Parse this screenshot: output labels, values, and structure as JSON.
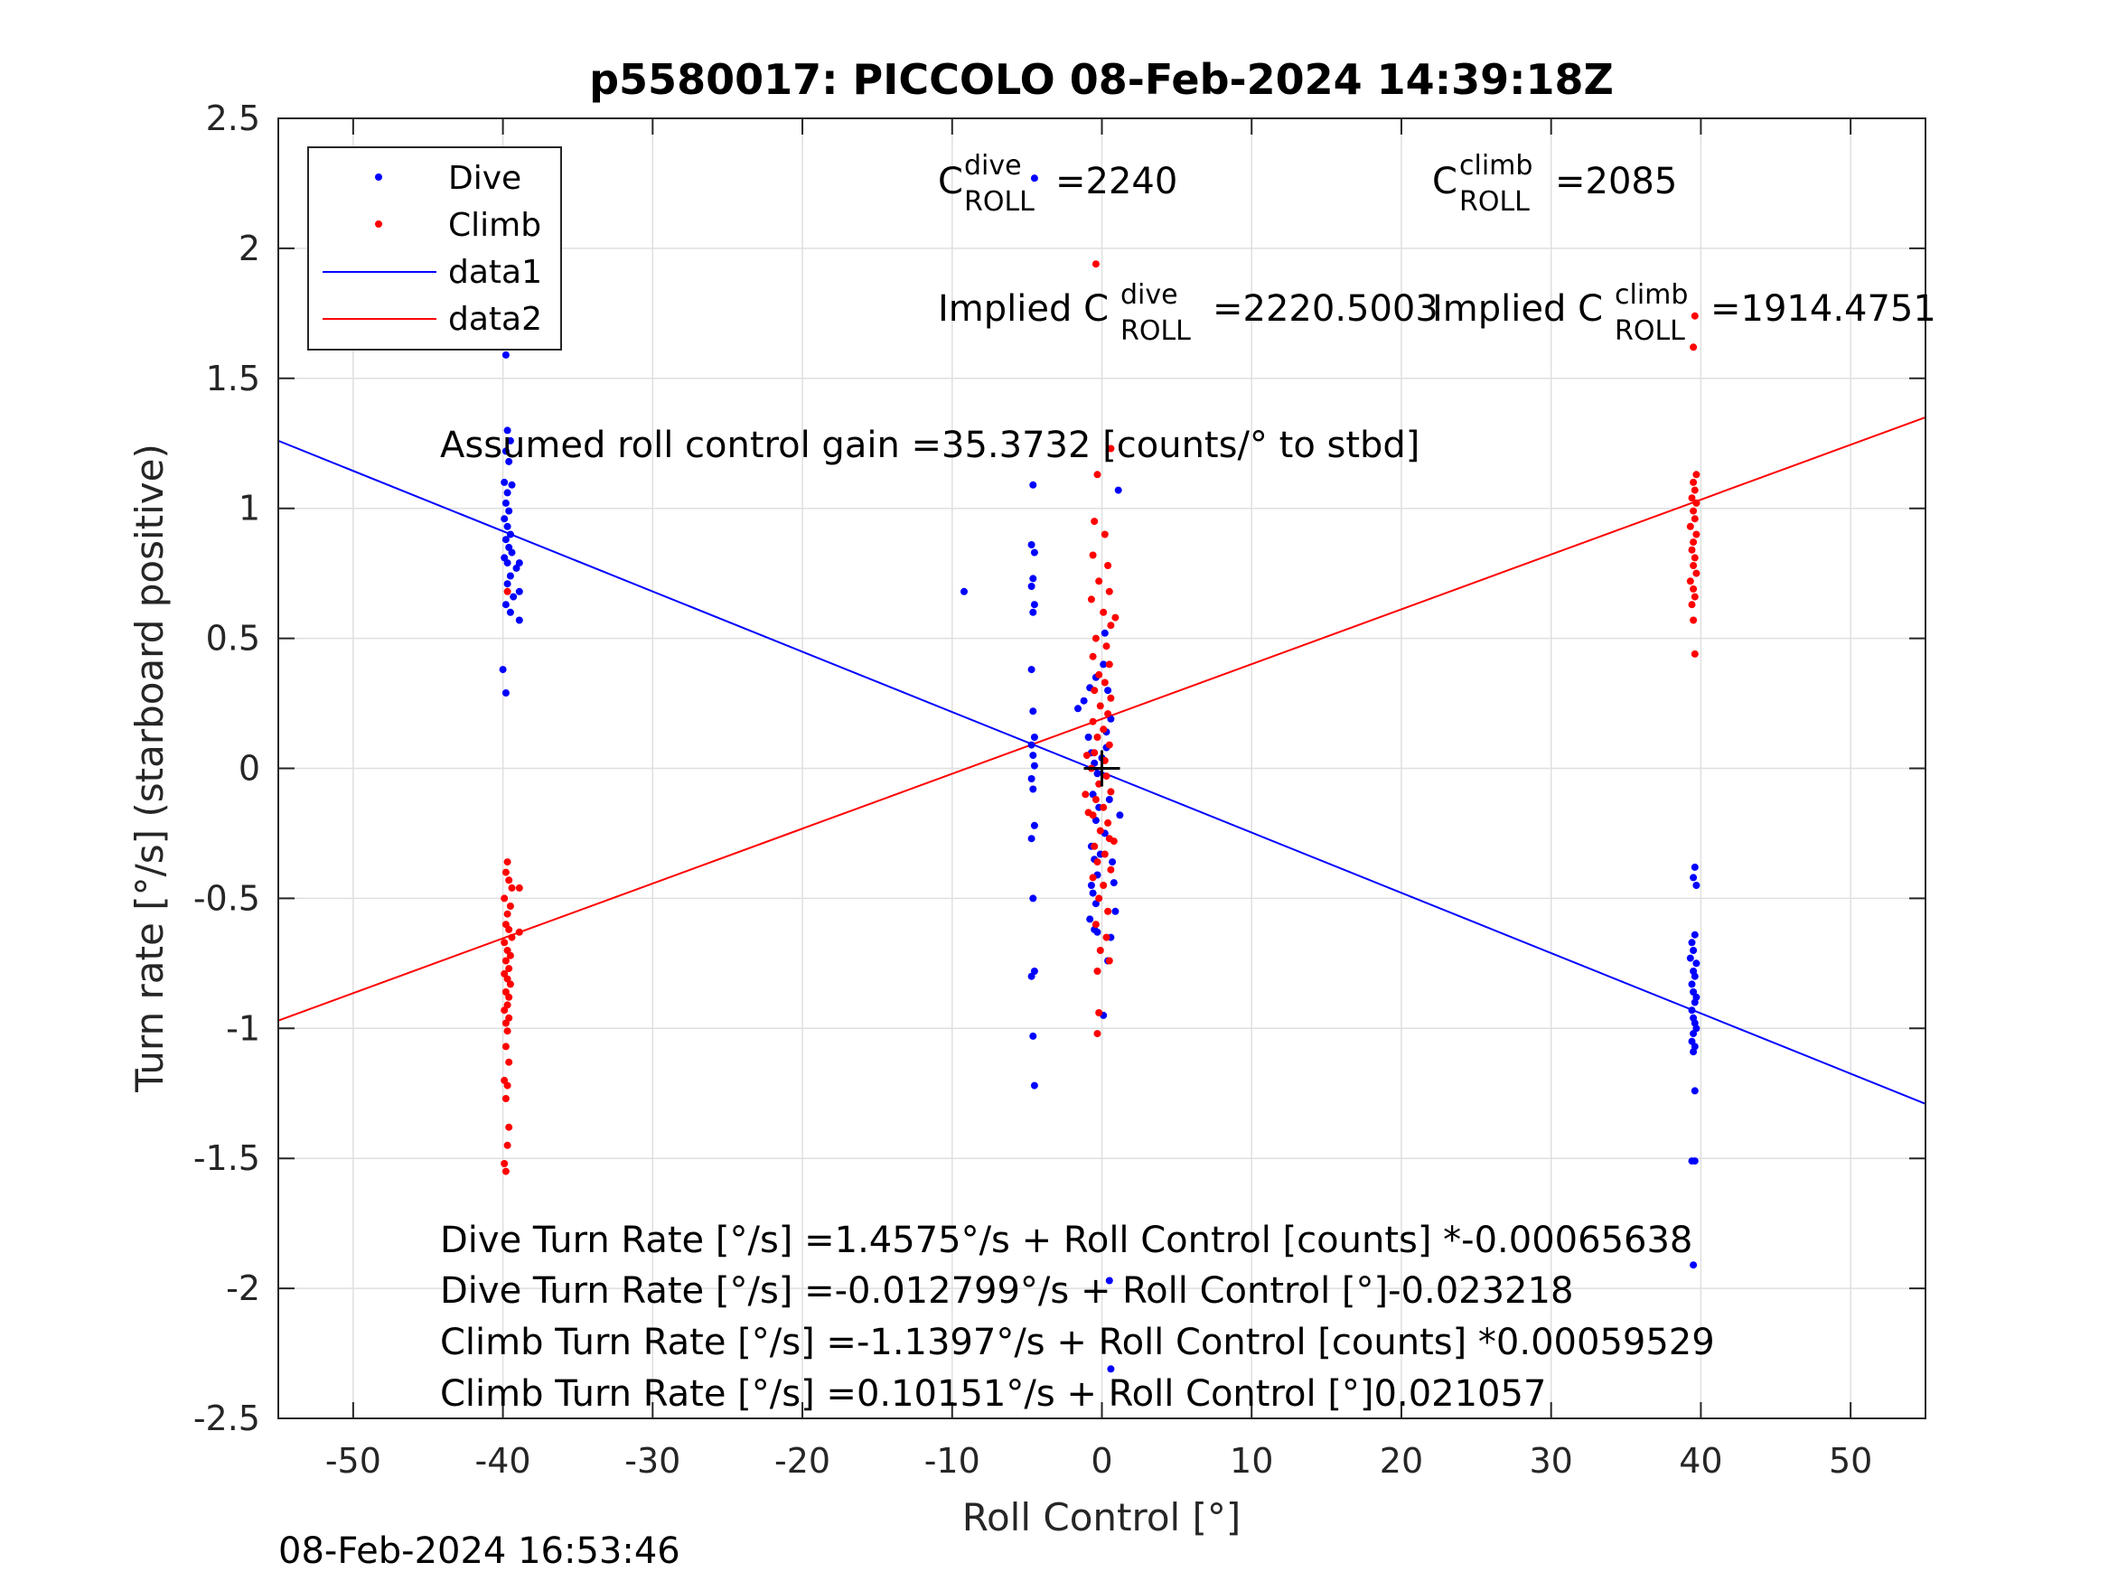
{
  "chart_data": {
    "type": "scatter",
    "title": "p5580017: PICCOLO 08-Feb-2024 14:39:18Z",
    "xlabel": "Roll Control [°]",
    "ylabel": "Turn rate [°/s] (starboard positive)",
    "xlim": [
      -55,
      55
    ],
    "ylim": [
      -2.5,
      2.5
    ],
    "xticks": [
      -50,
      -40,
      -30,
      -20,
      -10,
      0,
      10,
      20,
      30,
      40,
      50
    ],
    "xtick_labels": [
      "-50",
      "-40",
      "-30",
      "-20",
      "-10",
      "0",
      "10",
      "20",
      "30",
      "40",
      "50"
    ],
    "yticks": [
      -2.5,
      -2,
      -1.5,
      -1,
      -0.5,
      0,
      0.5,
      1,
      1.5,
      2,
      2.5
    ],
    "ytick_labels": [
      "-2.5",
      "-2",
      "-1.5",
      "-1",
      "-0.5",
      "0",
      "0.5",
      "1",
      "1.5",
      "2",
      "2.5"
    ],
    "grid": true,
    "legend_position": "top-left",
    "legend": [
      "Dive",
      "Climb",
      "data1",
      "data2"
    ],
    "colors": {
      "dive": "#0000ff",
      "climb": "#ff0000",
      "axis": "#262626",
      "grid": "#dfdfdf"
    },
    "series": [
      {
        "name": "Dive",
        "kind": "points",
        "color": "#0000ff",
        "points": [
          [
            -39.8,
            2.16
          ],
          [
            -39.6,
            1.93
          ],
          [
            -39.7,
            1.9
          ],
          [
            -39.5,
            1.78
          ],
          [
            -39.9,
            1.64
          ],
          [
            -39.8,
            1.59
          ],
          [
            -39.7,
            1.3
          ],
          [
            -39.5,
            1.26
          ],
          [
            -39.8,
            1.22
          ],
          [
            -39.6,
            1.18
          ],
          [
            -39.9,
            1.1
          ],
          [
            -39.4,
            1.09
          ],
          [
            -39.7,
            1.06
          ],
          [
            -39.8,
            1.02
          ],
          [
            -39.6,
            0.99
          ],
          [
            -39.9,
            0.96
          ],
          [
            -39.7,
            0.93
          ],
          [
            -39.5,
            0.9
          ],
          [
            -39.8,
            0.88
          ],
          [
            -39.6,
            0.85
          ],
          [
            -39.4,
            0.83
          ],
          [
            -39.9,
            0.81
          ],
          [
            -39.7,
            0.79
          ],
          [
            -38.9,
            0.79
          ],
          [
            -39.1,
            0.77
          ],
          [
            -39.5,
            0.74
          ],
          [
            -39.7,
            0.71
          ],
          [
            -38.9,
            0.68
          ],
          [
            -39.3,
            0.66
          ],
          [
            -39.8,
            0.63
          ],
          [
            -39.5,
            0.6
          ],
          [
            -38.9,
            0.57
          ],
          [
            -40.0,
            0.38
          ],
          [
            -39.8,
            0.29
          ],
          [
            -4.5,
            2.27
          ],
          [
            -4.6,
            1.09
          ],
          [
            -4.7,
            0.86
          ],
          [
            -4.5,
            0.83
          ],
          [
            -4.6,
            0.73
          ],
          [
            -4.7,
            0.7
          ],
          [
            -4.5,
            0.63
          ],
          [
            -4.6,
            0.6
          ],
          [
            -4.7,
            0.38
          ],
          [
            -4.6,
            0.22
          ],
          [
            -4.5,
            0.12
          ],
          [
            -4.7,
            0.09
          ],
          [
            -4.6,
            0.05
          ],
          [
            -4.5,
            0.01
          ],
          [
            -4.7,
            -0.04
          ],
          [
            -4.6,
            -0.08
          ],
          [
            -4.5,
            -0.22
          ],
          [
            -4.7,
            -0.27
          ],
          [
            -4.6,
            -0.5
          ],
          [
            -4.5,
            -0.78
          ],
          [
            -4.7,
            -0.8
          ],
          [
            -4.6,
            -1.03
          ],
          [
            -4.5,
            -1.22
          ],
          [
            -9.2,
            0.68
          ],
          [
            -1.6,
            0.23
          ],
          [
            -1.2,
            0.26
          ],
          [
            -0.8,
            0.31
          ],
          [
            -0.4,
            0.35
          ],
          [
            -0.9,
            0.12
          ],
          [
            -0.7,
            0.06
          ],
          [
            -0.5,
            0.02
          ],
          [
            -0.3,
            -0.02
          ],
          [
            -0.6,
            -0.1
          ],
          [
            -0.4,
            -0.2
          ],
          [
            -0.7,
            -0.3
          ],
          [
            -0.5,
            -0.35
          ],
          [
            -0.3,
            -0.41
          ],
          [
            -0.6,
            -0.48
          ],
          [
            -0.4,
            -0.52
          ],
          [
            -0.8,
            -0.58
          ],
          [
            -0.5,
            -0.62
          ],
          [
            -0.3,
            -0.63
          ],
          [
            -0.7,
            -0.45
          ],
          [
            -0.2,
            -0.15
          ],
          [
            0.2,
            0.52
          ],
          [
            0.1,
            0.4
          ],
          [
            0.4,
            0.3
          ],
          [
            0.6,
            0.19
          ],
          [
            0.3,
            0.08
          ],
          [
            0.5,
            -0.12
          ],
          [
            0.2,
            -0.25
          ],
          [
            0.7,
            -0.36
          ],
          [
            0.9,
            -0.55
          ],
          [
            0.6,
            -0.65
          ],
          [
            0.4,
            -0.74
          ],
          [
            0.1,
            -0.95
          ],
          [
            0.5,
            -1.97
          ],
          [
            0.6,
            -2.31
          ],
          [
            1.1,
            1.07
          ],
          [
            1.2,
            -0.18
          ],
          [
            0.0,
            0.04
          ],
          [
            0.3,
            0.14
          ],
          [
            -0.1,
            -0.33
          ],
          [
            0.8,
            -0.44
          ],
          [
            39.6,
            -0.38
          ],
          [
            39.5,
            -0.42
          ],
          [
            39.7,
            -0.45
          ],
          [
            39.4,
            -0.67
          ],
          [
            39.6,
            -0.64
          ],
          [
            39.5,
            -0.7
          ],
          [
            39.3,
            -0.73
          ],
          [
            39.7,
            -0.75
          ],
          [
            39.5,
            -0.78
          ],
          [
            39.6,
            -0.8
          ],
          [
            39.4,
            -0.83
          ],
          [
            39.5,
            -0.86
          ],
          [
            39.7,
            -0.88
          ],
          [
            39.6,
            -0.9
          ],
          [
            39.4,
            -0.93
          ],
          [
            39.5,
            -0.96
          ],
          [
            39.6,
            -0.98
          ],
          [
            39.7,
            -1.0
          ],
          [
            39.5,
            -1.02
          ],
          [
            39.4,
            -1.05
          ],
          [
            39.6,
            -1.07
          ],
          [
            39.5,
            -1.09
          ],
          [
            39.6,
            -1.24
          ],
          [
            39.4,
            -1.51
          ],
          [
            39.6,
            -1.51
          ],
          [
            39.5,
            -1.91
          ]
        ]
      },
      {
        "name": "Climb",
        "kind": "points",
        "color": "#ff0000",
        "points": [
          [
            -39.8,
            2.0
          ],
          [
            -39.7,
            0.68
          ],
          [
            -39.7,
            -0.36
          ],
          [
            -39.8,
            -0.4
          ],
          [
            -39.6,
            -0.43
          ],
          [
            -39.4,
            -0.46
          ],
          [
            -38.9,
            -0.46
          ],
          [
            -39.9,
            -0.5
          ],
          [
            -39.5,
            -0.53
          ],
          [
            -39.7,
            -0.56
          ],
          [
            -39.8,
            -0.6
          ],
          [
            -39.6,
            -0.62
          ],
          [
            -38.9,
            -0.63
          ],
          [
            -39.4,
            -0.65
          ],
          [
            -39.9,
            -0.67
          ],
          [
            -39.7,
            -0.7
          ],
          [
            -39.5,
            -0.72
          ],
          [
            -39.8,
            -0.74
          ],
          [
            -39.6,
            -0.77
          ],
          [
            -39.9,
            -0.79
          ],
          [
            -39.7,
            -0.81
          ],
          [
            -39.5,
            -0.83
          ],
          [
            -39.8,
            -0.86
          ],
          [
            -39.6,
            -0.88
          ],
          [
            -39.7,
            -0.91
          ],
          [
            -39.9,
            -0.93
          ],
          [
            -39.6,
            -0.96
          ],
          [
            -39.8,
            -0.98
          ],
          [
            -39.7,
            -1.01
          ],
          [
            -39.8,
            -1.07
          ],
          [
            -39.6,
            -1.13
          ],
          [
            -39.9,
            -1.2
          ],
          [
            -39.7,
            -1.22
          ],
          [
            -39.8,
            -1.27
          ],
          [
            -39.6,
            -1.38
          ],
          [
            -39.7,
            -1.45
          ],
          [
            -39.9,
            -1.52
          ],
          [
            -39.8,
            -1.55
          ],
          [
            -0.4,
            1.94
          ],
          [
            -0.3,
            1.13
          ],
          [
            0.6,
            1.23
          ],
          [
            -0.5,
            0.95
          ],
          [
            0.2,
            0.9
          ],
          [
            -0.6,
            0.82
          ],
          [
            0.4,
            0.78
          ],
          [
            -0.2,
            0.72
          ],
          [
            0.5,
            0.68
          ],
          [
            -0.7,
            0.65
          ],
          [
            0.1,
            0.6
          ],
          [
            0.6,
            0.55
          ],
          [
            -0.4,
            0.5
          ],
          [
            0.3,
            0.47
          ],
          [
            -0.6,
            0.43
          ],
          [
            0.5,
            0.4
          ],
          [
            -0.2,
            0.36
          ],
          [
            0.2,
            0.33
          ],
          [
            -0.5,
            0.3
          ],
          [
            0.6,
            0.27
          ],
          [
            -0.1,
            0.24
          ],
          [
            0.4,
            0.21
          ],
          [
            -0.6,
            0.18
          ],
          [
            0.1,
            0.15
          ],
          [
            -0.3,
            0.12
          ],
          [
            0.5,
            0.09
          ],
          [
            -0.5,
            0.06
          ],
          [
            0.2,
            0.03
          ],
          [
            -0.7,
            0.0
          ],
          [
            0.3,
            -0.03
          ],
          [
            -0.2,
            -0.06
          ],
          [
            0.6,
            -0.09
          ],
          [
            -0.4,
            -0.12
          ],
          [
            0.1,
            -0.15
          ],
          [
            -0.6,
            -0.18
          ],
          [
            0.4,
            -0.21
          ],
          [
            -0.1,
            -0.24
          ],
          [
            0.5,
            -0.27
          ],
          [
            -0.5,
            -0.3
          ],
          [
            0.2,
            -0.33
          ],
          [
            -0.3,
            -0.36
          ],
          [
            0.6,
            -0.39
          ],
          [
            -0.6,
            -0.42
          ],
          [
            0.1,
            -0.45
          ],
          [
            -0.2,
            -0.5
          ],
          [
            0.4,
            -0.55
          ],
          [
            -0.4,
            -0.6
          ],
          [
            0.3,
            -0.65
          ],
          [
            -0.1,
            -0.7
          ],
          [
            0.5,
            -0.74
          ],
          [
            -0.3,
            -0.78
          ],
          [
            -0.2,
            -0.94
          ],
          [
            -0.3,
            -1.02
          ],
          [
            -1.0,
            0.05
          ],
          [
            -1.1,
            -0.1
          ],
          [
            -0.9,
            -0.17
          ],
          [
            0.9,
            0.58
          ],
          [
            0.8,
            -0.28
          ],
          [
            39.6,
            1.74
          ],
          [
            39.5,
            1.62
          ],
          [
            39.7,
            1.13
          ],
          [
            39.5,
            1.1
          ],
          [
            39.6,
            1.07
          ],
          [
            39.4,
            1.04
          ],
          [
            39.7,
            1.02
          ],
          [
            39.5,
            0.99
          ],
          [
            39.6,
            0.96
          ],
          [
            39.3,
            0.93
          ],
          [
            39.7,
            0.9
          ],
          [
            39.5,
            0.87
          ],
          [
            39.4,
            0.84
          ],
          [
            39.6,
            0.81
          ],
          [
            39.5,
            0.78
          ],
          [
            39.7,
            0.75
          ],
          [
            39.3,
            0.72
          ],
          [
            39.5,
            0.69
          ],
          [
            39.6,
            0.66
          ],
          [
            39.4,
            0.63
          ],
          [
            39.5,
            0.57
          ],
          [
            39.6,
            0.44
          ]
        ]
      },
      {
        "name": "data1",
        "kind": "line",
        "color": "#0000ff",
        "x": [
          -55,
          55
        ],
        "y": [
          1.26,
          -1.29
        ]
      },
      {
        "name": "data2",
        "kind": "line",
        "color": "#ff0000",
        "x": [
          -55,
          55
        ],
        "y": [
          -0.97,
          1.35
        ]
      }
    ],
    "annotations": {
      "c_dive": {
        "base": "C",
        "sup": "dive",
        "sub": "ROLL",
        "value": "=2240"
      },
      "c_climb": {
        "base": "C",
        "sup": "climb",
        "sub": "ROLL",
        "value": "=2085"
      },
      "implied_dive": {
        "prefix": "Implied C",
        "sup": "dive",
        "sub": "ROLL",
        "value": "=2220.5003"
      },
      "implied_climb": {
        "prefix": "Implied C",
        "sup": "climb",
        "sub": "ROLL",
        "value": "=1914.4751"
      },
      "gain": "Assumed roll control gain =35.3732 [counts/° to stbd]",
      "equations": [
        "Dive Turn Rate [°/s] =1.4575°/s + Roll Control [counts] *-0.00065638",
        "Dive Turn Rate [°/s] =-0.012799°/s + Roll Control [°]-0.023218",
        "Climb Turn Rate [°/s] =-1.1397°/s + Roll Control [counts] *0.00059529",
        "Climb Turn Rate [°/s] =0.10151°/s + Roll Control [°]0.021057"
      ]
    },
    "center_marker": "+",
    "timestamp": "08-Feb-2024 16:53:46"
  }
}
